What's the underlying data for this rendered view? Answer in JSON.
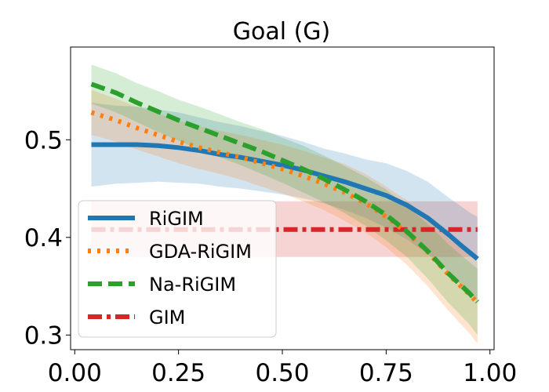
{
  "chart_data": {
    "type": "line",
    "title": "Goal (G)",
    "xlabel": "",
    "ylabel": "",
    "xlim": [
      -0.01,
      1.01
    ],
    "ylim": [
      0.285,
      0.595
    ],
    "x_ticks": [
      0.0,
      0.25,
      0.5,
      0.75,
      1.0
    ],
    "x_tick_labels": [
      "0.00",
      "0.25",
      "0.50",
      "0.75",
      "1.00"
    ],
    "y_ticks": [
      0.3,
      0.4,
      0.5
    ],
    "y_tick_labels": [
      "0.3",
      "0.4",
      "0.5"
    ],
    "grid": false,
    "legend_position": "lower-left",
    "x": [
      0.04,
      0.1,
      0.15,
      0.2,
      0.25,
      0.3,
      0.35,
      0.4,
      0.45,
      0.5,
      0.55,
      0.6,
      0.65,
      0.7,
      0.75,
      0.8,
      0.85,
      0.9,
      0.93,
      0.95,
      0.97
    ],
    "series": [
      {
        "name": "RiGIM",
        "color": "#1f77b4",
        "style": "solid",
        "values": [
          0.495,
          0.495,
          0.495,
          0.494,
          0.492,
          0.489,
          0.485,
          0.482,
          0.478,
          0.474,
          0.469,
          0.463,
          0.457,
          0.45,
          0.443,
          0.433,
          0.42,
          0.403,
          0.392,
          0.385,
          0.378
        ],
        "lower": [
          0.452,
          0.455,
          0.456,
          0.457,
          0.456,
          0.455,
          0.452,
          0.45,
          0.447,
          0.444,
          0.44,
          0.435,
          0.428,
          0.42,
          0.41,
          0.398,
          0.383,
          0.365,
          0.352,
          0.344,
          0.335
        ],
        "upper": [
          0.538,
          0.535,
          0.534,
          0.531,
          0.528,
          0.523,
          0.518,
          0.514,
          0.509,
          0.504,
          0.498,
          0.491,
          0.486,
          0.48,
          0.476,
          0.468,
          0.457,
          0.441,
          0.432,
          0.426,
          0.421
        ]
      },
      {
        "name": "GDA-RiGIM",
        "color": "#ff7f0e",
        "style": "dotted",
        "values": [
          0.528,
          0.52,
          0.512,
          0.505,
          0.498,
          0.492,
          0.487,
          0.482,
          0.476,
          0.47,
          0.463,
          0.455,
          0.446,
          0.435,
          0.421,
          0.405,
          0.385,
          0.362,
          0.35,
          0.342,
          0.333
        ],
        "lower": [
          0.505,
          0.498,
          0.49,
          0.483,
          0.476,
          0.47,
          0.465,
          0.459,
          0.452,
          0.445,
          0.437,
          0.428,
          0.417,
          0.405,
          0.39,
          0.372,
          0.35,
          0.325,
          0.311,
          0.302,
          0.291
        ],
        "upper": [
          0.551,
          0.542,
          0.534,
          0.527,
          0.52,
          0.514,
          0.509,
          0.505,
          0.5,
          0.495,
          0.489,
          0.482,
          0.475,
          0.465,
          0.452,
          0.438,
          0.42,
          0.399,
          0.389,
          0.382,
          0.375
        ]
      },
      {
        "name": "Na-RiGIM",
        "color": "#2ca02c",
        "style": "dashed",
        "values": [
          0.557,
          0.548,
          0.538,
          0.529,
          0.52,
          0.512,
          0.504,
          0.496,
          0.488,
          0.479,
          0.47,
          0.46,
          0.449,
          0.437,
          0.423,
          0.406,
          0.386,
          0.363,
          0.351,
          0.343,
          0.334
        ],
        "lower": [
          0.537,
          0.528,
          0.518,
          0.508,
          0.499,
          0.49,
          0.482,
          0.474,
          0.465,
          0.456,
          0.446,
          0.436,
          0.425,
          0.412,
          0.397,
          0.38,
          0.358,
          0.333,
          0.32,
          0.311,
          0.3
        ],
        "upper": [
          0.577,
          0.568,
          0.558,
          0.55,
          0.541,
          0.534,
          0.526,
          0.518,
          0.511,
          0.502,
          0.494,
          0.484,
          0.473,
          0.462,
          0.449,
          0.432,
          0.414,
          0.393,
          0.382,
          0.375,
          0.368
        ]
      },
      {
        "name": "GIM",
        "color": "#d62728",
        "style": "dashdot",
        "values": [
          0.408,
          0.408,
          0.408,
          0.408,
          0.408,
          0.408,
          0.408,
          0.408,
          0.408,
          0.408,
          0.408,
          0.408,
          0.408,
          0.408,
          0.408,
          0.408,
          0.408,
          0.408,
          0.408,
          0.408,
          0.408
        ],
        "lower": [
          0.38,
          0.38,
          0.38,
          0.38,
          0.38,
          0.38,
          0.38,
          0.38,
          0.38,
          0.38,
          0.38,
          0.38,
          0.38,
          0.38,
          0.38,
          0.38,
          0.38,
          0.38,
          0.38,
          0.38,
          0.38
        ],
        "upper": [
          0.437,
          0.437,
          0.437,
          0.437,
          0.437,
          0.437,
          0.437,
          0.437,
          0.437,
          0.437,
          0.437,
          0.437,
          0.437,
          0.437,
          0.437,
          0.437,
          0.437,
          0.437,
          0.437,
          0.437,
          0.437
        ]
      }
    ]
  }
}
